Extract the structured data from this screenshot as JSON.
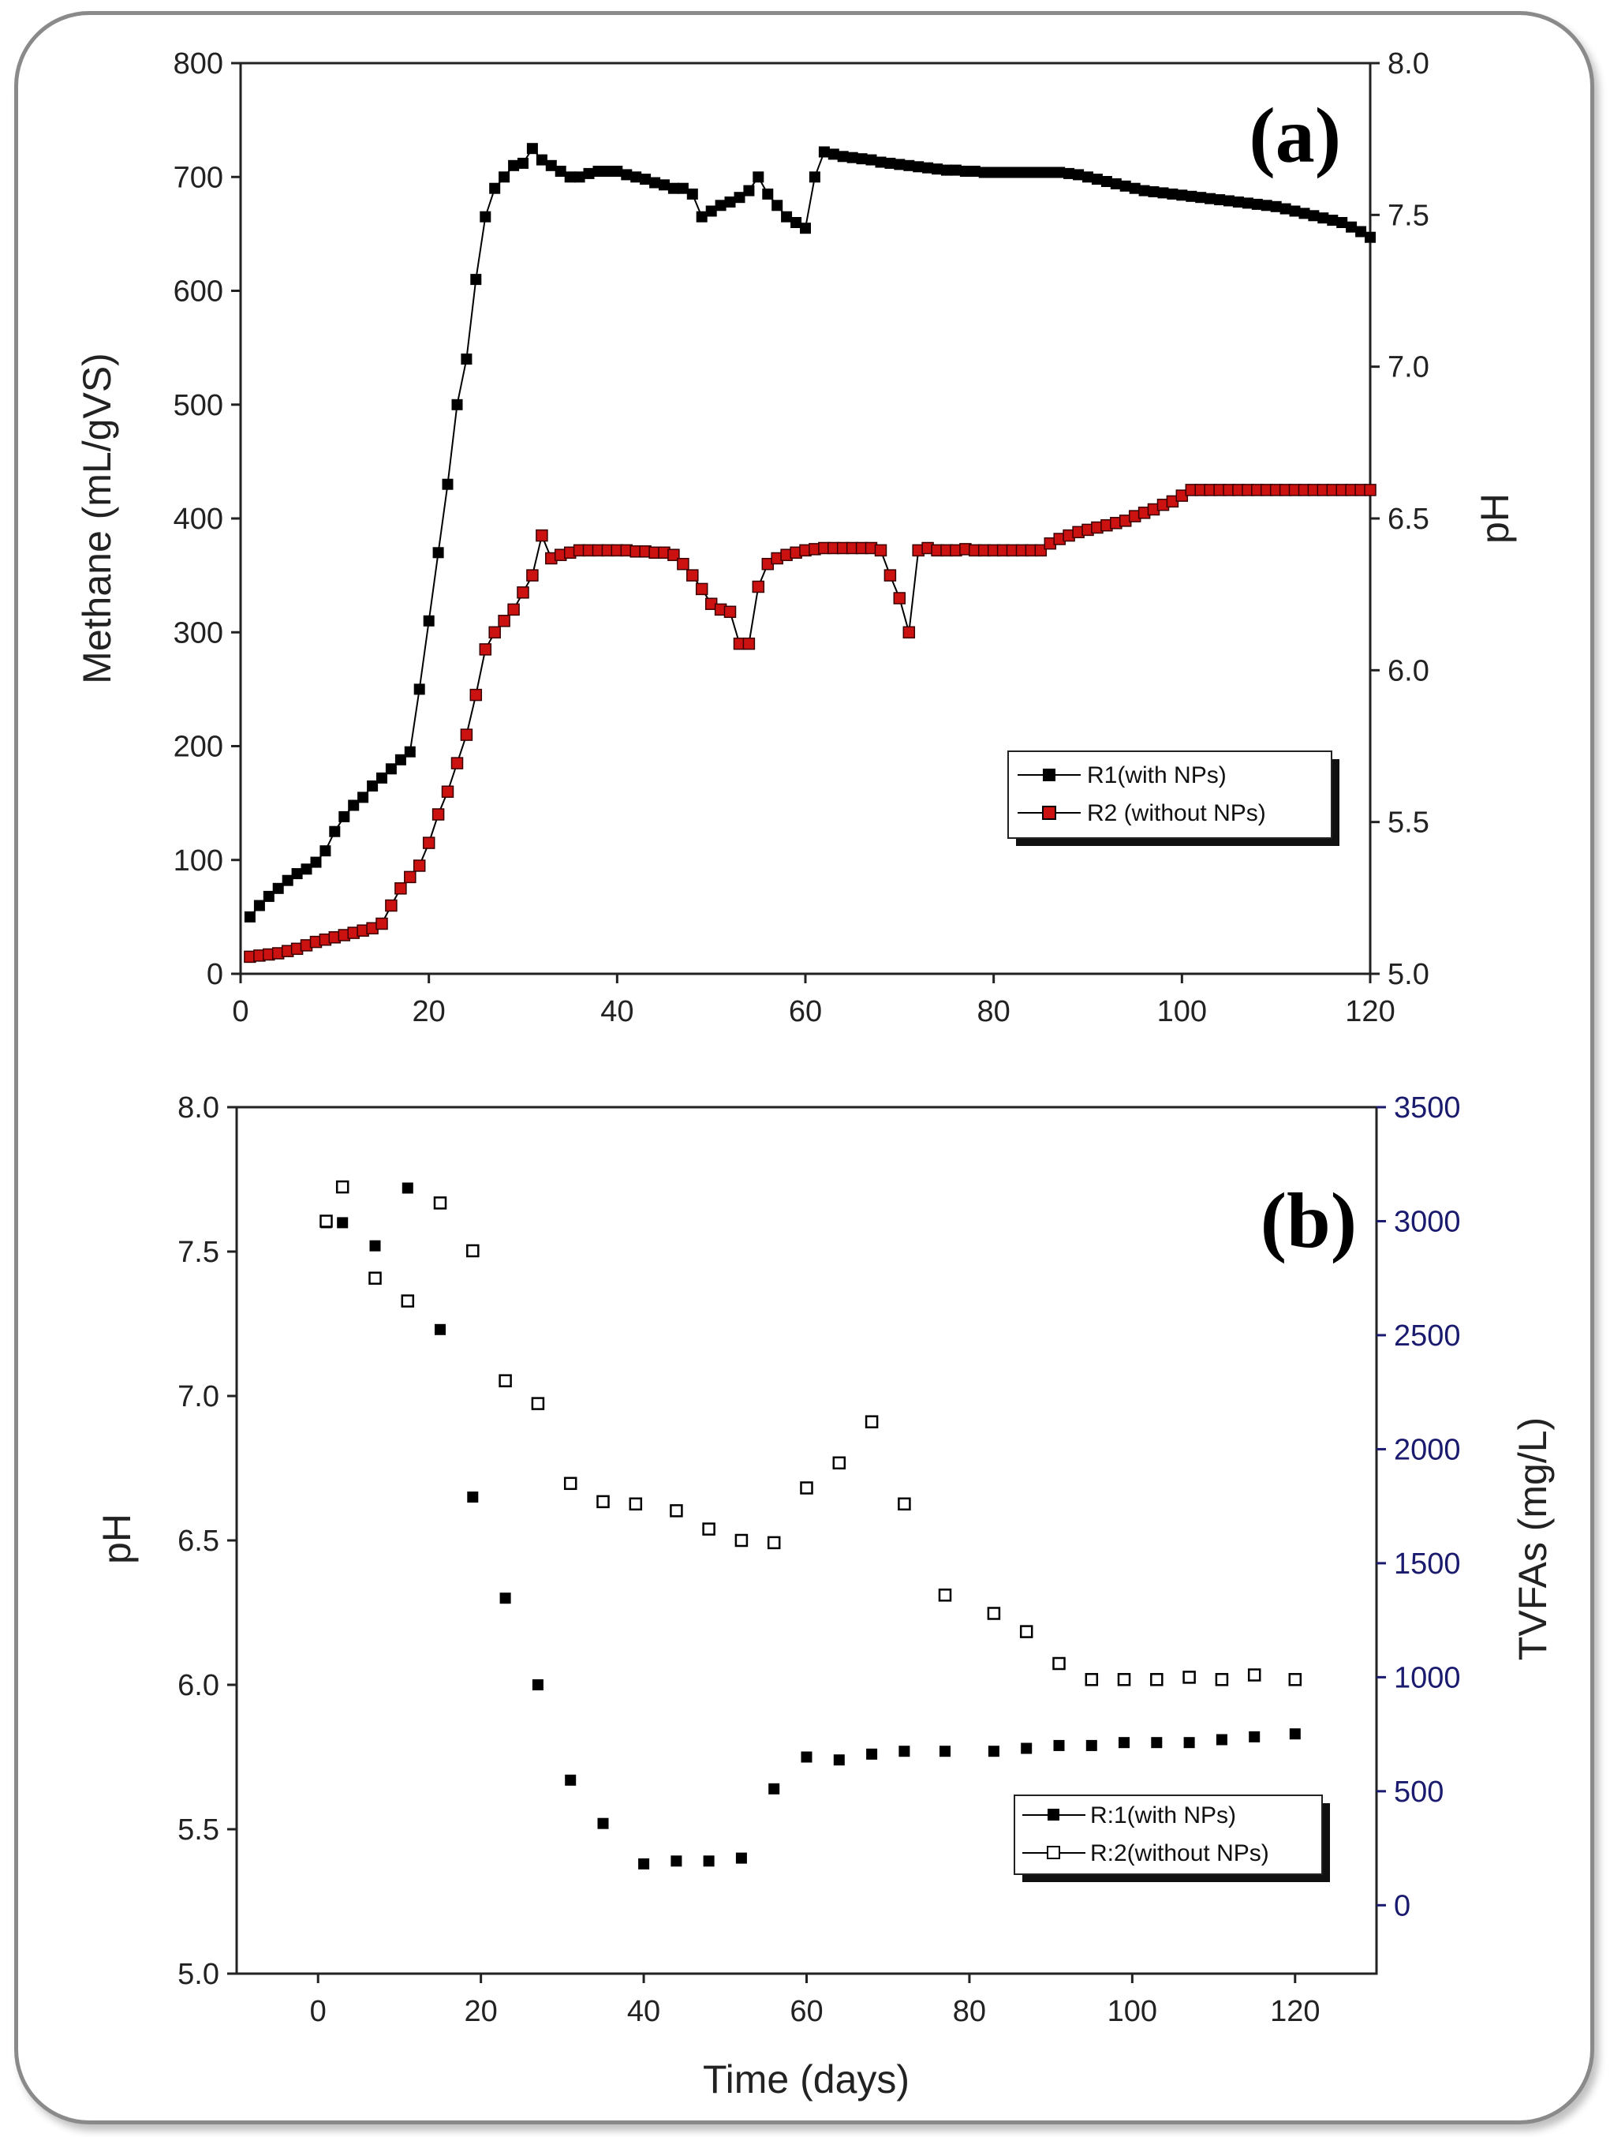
{
  "chart_data": [
    {
      "type": "line",
      "panel_label": "(a)",
      "xlabel": "",
      "ylabel": "Methane (mL/gVS)",
      "ylabel_right": "pH",
      "xlim": [
        0,
        120
      ],
      "ylim": [
        0,
        800
      ],
      "ylim_right": [
        5.0,
        8.0
      ],
      "x_ticks": [
        "0",
        "20",
        "40",
        "60",
        "80",
        "100",
        "120"
      ],
      "y_ticks": [
        "0",
        "100",
        "200",
        "300",
        "400",
        "500",
        "600",
        "700",
        "800"
      ],
      "y_right_ticks": [
        "5.0",
        "5.5",
        "6.0",
        "6.5",
        "7.0",
        "7.5",
        "8.0"
      ],
      "legend_position": "lower-right",
      "series": [
        {
          "name": "R1(with NPs)",
          "color": "#000000",
          "x": [
            1,
            2,
            3,
            4,
            5,
            6,
            7,
            8,
            9,
            10,
            11,
            12,
            13,
            14,
            15,
            16,
            17,
            18,
            19,
            20,
            21,
            22,
            23,
            24,
            25,
            26,
            27,
            28,
            29,
            30,
            31,
            32,
            33,
            34,
            35,
            36,
            37,
            38,
            39,
            40,
            41,
            42,
            43,
            44,
            45,
            46,
            47,
            48,
            49,
            50,
            51,
            52,
            53,
            54,
            55,
            56,
            57,
            58,
            59,
            60,
            61,
            62,
            63,
            64,
            65,
            66,
            67,
            68,
            69,
            70,
            71,
            72,
            73,
            74,
            75,
            76,
            77,
            78,
            79,
            80,
            81,
            82,
            83,
            84,
            85,
            86,
            87,
            88,
            89,
            90,
            91,
            92,
            93,
            94,
            95,
            96,
            97,
            98,
            99,
            100,
            101,
            102,
            103,
            104,
            105,
            106,
            107,
            108,
            109,
            110,
            111,
            112,
            113,
            114,
            115,
            116,
            117,
            118,
            119,
            120
          ],
          "values": [
            50,
            60,
            68,
            75,
            82,
            88,
            92,
            98,
            108,
            125,
            138,
            148,
            155,
            165,
            172,
            180,
            188,
            195,
            250,
            310,
            370,
            430,
            500,
            540,
            610,
            665,
            690,
            700,
            710,
            712,
            725,
            715,
            710,
            705,
            700,
            700,
            703,
            705,
            705,
            705,
            702,
            700,
            698,
            695,
            693,
            690,
            690,
            685,
            665,
            670,
            675,
            678,
            682,
            688,
            700,
            685,
            675,
            665,
            660,
            655,
            700,
            722,
            720,
            718,
            717,
            716,
            715,
            713,
            712,
            711,
            710,
            709,
            708,
            707,
            706,
            706,
            705,
            705,
            704,
            704,
            704,
            704,
            704,
            704,
            704,
            704,
            704,
            703,
            702,
            700,
            698,
            696,
            694,
            692,
            690,
            688,
            687,
            686,
            685,
            684,
            683,
            682,
            681,
            680,
            679,
            678,
            677,
            676,
            675,
            674,
            672,
            670,
            668,
            666,
            664,
            662,
            660,
            656,
            652,
            647
          ]
        },
        {
          "name": "R2 (without NPs)",
          "color": "#cc1111",
          "x": [
            1,
            2,
            3,
            4,
            5,
            6,
            7,
            8,
            9,
            10,
            11,
            12,
            13,
            14,
            15,
            16,
            17,
            18,
            19,
            20,
            21,
            22,
            23,
            24,
            25,
            26,
            27,
            28,
            29,
            30,
            31,
            32,
            33,
            34,
            35,
            36,
            37,
            38,
            39,
            40,
            41,
            42,
            43,
            44,
            45,
            46,
            47,
            48,
            49,
            50,
            51,
            52,
            53,
            54,
            55,
            56,
            57,
            58,
            59,
            60,
            61,
            62,
            63,
            64,
            65,
            66,
            67,
            68,
            69,
            70,
            71,
            72,
            73,
            74,
            75,
            76,
            77,
            78,
            79,
            80,
            81,
            82,
            83,
            84,
            85,
            86,
            87,
            88,
            89,
            90,
            91,
            92,
            93,
            94,
            95,
            96,
            97,
            98,
            99,
            100,
            101,
            102,
            103,
            104,
            105,
            106,
            107,
            108,
            109,
            110,
            111,
            112,
            113,
            114,
            115,
            116,
            117,
            118,
            119,
            120
          ],
          "values": [
            15,
            16,
            17,
            18,
            20,
            22,
            25,
            28,
            30,
            32,
            34,
            36,
            38,
            40,
            44,
            60,
            75,
            85,
            95,
            115,
            140,
            160,
            185,
            210,
            245,
            285,
            300,
            310,
            320,
            335,
            350,
            385,
            365,
            368,
            370,
            372,
            372,
            372,
            372,
            372,
            372,
            371,
            371,
            370,
            370,
            368,
            360,
            350,
            338,
            325,
            320,
            318,
            290,
            290,
            340,
            360,
            365,
            368,
            370,
            372,
            373,
            374,
            374,
            374,
            374,
            374,
            374,
            372,
            350,
            330,
            300,
            372,
            374,
            372,
            372,
            372,
            373,
            372,
            372,
            372,
            372,
            372,
            372,
            372,
            372,
            378,
            382,
            385,
            388,
            390,
            392,
            394,
            396,
            398,
            402,
            405,
            408,
            412,
            415,
            420,
            425,
            425,
            425,
            425,
            425,
            425,
            425,
            425,
            425,
            425,
            425,
            425,
            425,
            425,
            425,
            425,
            425,
            425,
            425,
            425
          ]
        }
      ]
    },
    {
      "type": "scatter",
      "panel_label": "(b)",
      "xlabel": "Time (days)",
      "ylabel": "pH",
      "ylabel_right": "TVFAs (mg/L)",
      "xlim": [
        -10,
        130
      ],
      "ylim": [
        5.0,
        8.0
      ],
      "ylim_right": [
        -300,
        3500
      ],
      "x_ticks": [
        "0",
        "20",
        "40",
        "60",
        "80",
        "100",
        "120"
      ],
      "y_ticks": [
        "5.0",
        "5.5",
        "6.0",
        "6.5",
        "7.0",
        "7.5",
        "8.0"
      ],
      "y_right_ticks": [
        "0",
        "500",
        "1000",
        "1500",
        "2000",
        "2500",
        "3000",
        "3500"
      ],
      "legend_position": "lower-right",
      "series": [
        {
          "name": "R:1(with NPs)",
          "marker": "filled-square",
          "axis": "left",
          "x": [
            1,
            3,
            7,
            11,
            15,
            19,
            23,
            27,
            31,
            35,
            40,
            44,
            48,
            52,
            56,
            60,
            64,
            68,
            72,
            77,
            83,
            87,
            91,
            95,
            99,
            103,
            107,
            111,
            115,
            120
          ],
          "values": [
            7.6,
            7.6,
            7.52,
            7.72,
            7.23,
            6.65,
            6.3,
            6.0,
            5.67,
            5.52,
            5.38,
            5.39,
            5.39,
            5.4,
            5.64,
            5.75,
            5.74,
            5.76,
            5.77,
            5.77,
            5.77,
            5.78,
            5.79,
            5.79,
            5.8,
            5.8,
            5.8,
            5.81,
            5.82,
            5.83
          ]
        },
        {
          "name": "R:2(without NPs)",
          "marker": "open-square",
          "axis": "right",
          "x": [
            1,
            3,
            7,
            11,
            15,
            19,
            23,
            27,
            31,
            35,
            39,
            44,
            48,
            52,
            56,
            60,
            64,
            68,
            72,
            77,
            83,
            87,
            91,
            95,
            99,
            103,
            107,
            111,
            115,
            120
          ],
          "values": [
            3000,
            3150,
            2750,
            2650,
            3080,
            2870,
            2300,
            2200,
            1850,
            1770,
            1760,
            1730,
            1650,
            1600,
            1590,
            1830,
            1940,
            2120,
            1760,
            1360,
            1280,
            1200,
            1060,
            990,
            990,
            990,
            1000,
            990,
            1010,
            990
          ]
        }
      ]
    }
  ]
}
